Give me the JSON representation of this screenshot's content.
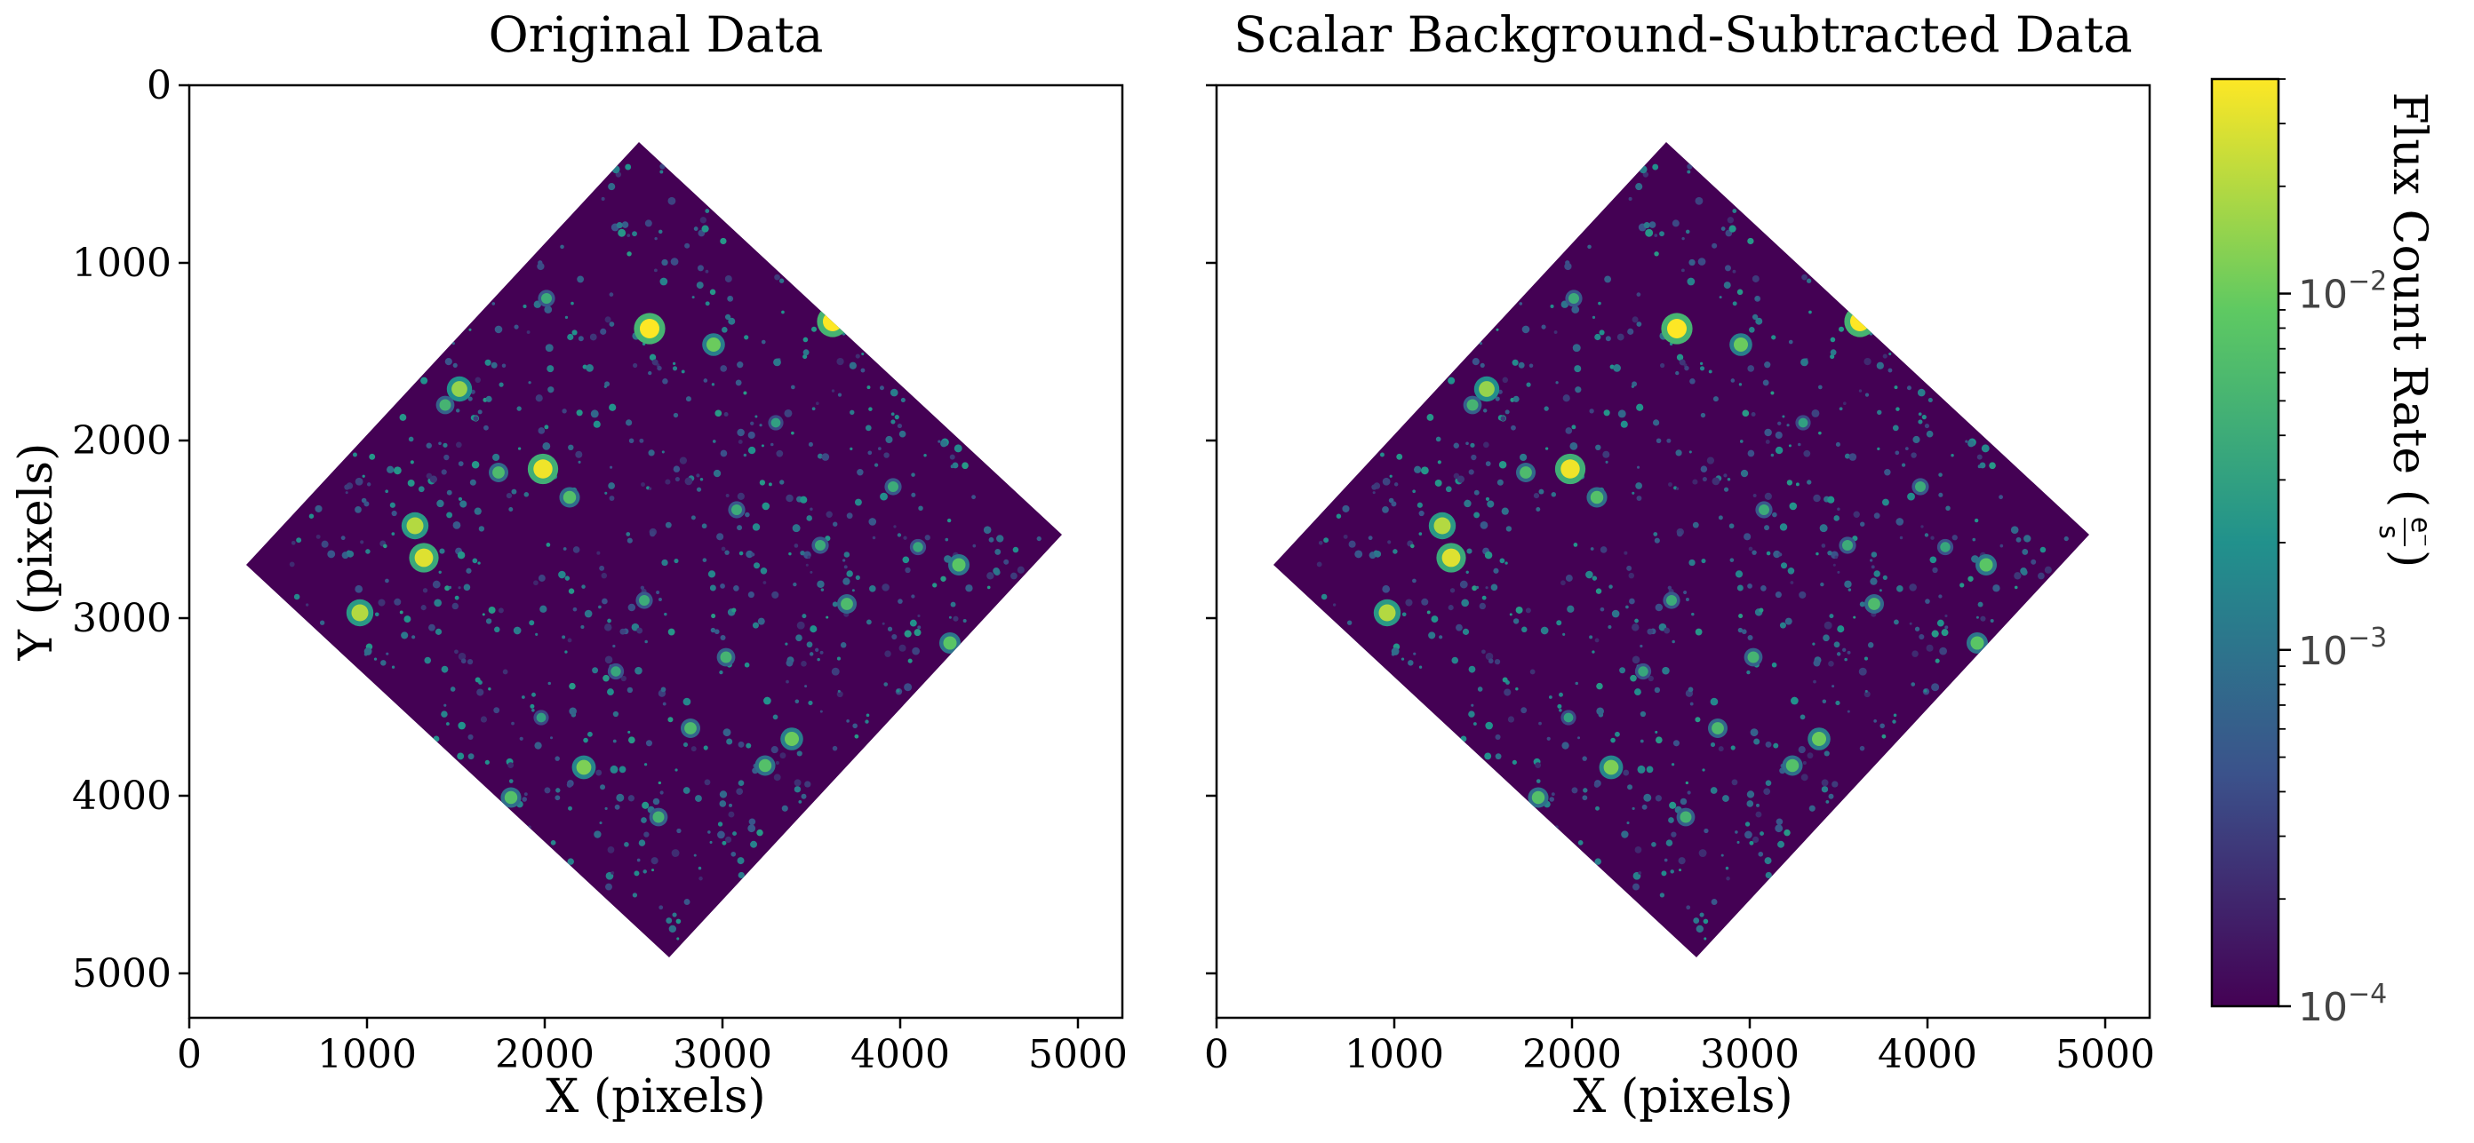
{
  "chart_data": {
    "type": "heatmap",
    "scale": "log",
    "colormap": "viridis",
    "colormap_stops": [
      "#440154",
      "#3b528b",
      "#21918c",
      "#5ec962",
      "#fde725"
    ],
    "panels": [
      {
        "title": "Original Data",
        "xlabel": "X (pixels)",
        "ylabel": "Y (pixels)",
        "xlim": [
          0,
          5250
        ],
        "ylim": [
          5250,
          0
        ],
        "xticks": [
          0,
          1000,
          2000,
          3000,
          4000,
          5000
        ],
        "yticks": [
          0,
          1000,
          2000,
          3000,
          4000,
          5000
        ],
        "x_tick_labels": [
          "0",
          "1000",
          "2000",
          "3000",
          "4000",
          "5000"
        ],
        "y_tick_labels": [
          "0",
          "1000",
          "2000",
          "3000",
          "4000",
          "5000"
        ],
        "footprint_corners": [
          [
            2530,
            320
          ],
          [
            4910,
            2530
          ],
          [
            2700,
            4910
          ],
          [
            320,
            2700
          ]
        ]
      },
      {
        "title": "Scalar Background-Subtracted Data",
        "xlabel": "X (pixels)",
        "ylabel": "",
        "xlim": [
          0,
          5250
        ],
        "ylim": [
          5250,
          0
        ],
        "xticks": [
          0,
          1000,
          2000,
          3000,
          4000,
          5000
        ],
        "yticks": [
          0,
          1000,
          2000,
          3000,
          4000,
          5000
        ],
        "x_tick_labels": [
          "0",
          "1000",
          "2000",
          "3000",
          "4000",
          "5000"
        ],
        "y_tick_labels": [],
        "footprint_corners": [
          [
            2530,
            320
          ],
          [
            4910,
            2530
          ],
          [
            2700,
            4910
          ],
          [
            320,
            2700
          ]
        ]
      }
    ],
    "colorbar": {
      "label": "Flux Count Rate",
      "unit_numerator": "e⁻",
      "unit_denominator": "s",
      "range": [
        0.0001,
        0.04
      ],
      "major_ticks": [
        0.0001,
        0.001,
        0.01
      ],
      "tick_label_mantissa": "10",
      "tick_label_exponents": [
        "−4",
        "−3",
        "−2"
      ]
    },
    "bright_sources": [
      {
        "x": 2590,
        "y": 1370,
        "flux": 0.04
      },
      {
        "x": 3620,
        "y": 1330,
        "flux": 0.04
      },
      {
        "x": 1990,
        "y": 2160,
        "flux": 0.035
      },
      {
        "x": 1320,
        "y": 2660,
        "flux": 0.03
      },
      {
        "x": 1270,
        "y": 2480,
        "flux": 0.02
      },
      {
        "x": 960,
        "y": 2970,
        "flux": 0.02
      },
      {
        "x": 1520,
        "y": 1710,
        "flux": 0.015
      },
      {
        "x": 2220,
        "y": 3840,
        "flux": 0.012
      },
      {
        "x": 2950,
        "y": 1460,
        "flux": 0.01
      },
      {
        "x": 3390,
        "y": 3680,
        "flux": 0.01
      },
      {
        "x": 4330,
        "y": 2700,
        "flux": 0.008
      },
      {
        "x": 4280,
        "y": 3140,
        "flux": 0.008
      },
      {
        "x": 1810,
        "y": 4010,
        "flux": 0.007
      },
      {
        "x": 3240,
        "y": 3830,
        "flux": 0.007
      },
      {
        "x": 2140,
        "y": 2320,
        "flux": 0.007
      },
      {
        "x": 1740,
        "y": 2180,
        "flux": 0.006
      },
      {
        "x": 3700,
        "y": 2920,
        "flux": 0.006
      },
      {
        "x": 2820,
        "y": 3620,
        "flux": 0.006
      },
      {
        "x": 2640,
        "y": 4120,
        "flux": 0.005
      },
      {
        "x": 3020,
        "y": 3220,
        "flux": 0.005
      },
      {
        "x": 1440,
        "y": 1800,
        "flux": 0.005
      },
      {
        "x": 2010,
        "y": 1200,
        "flux": 0.004
      },
      {
        "x": 3960,
        "y": 2260,
        "flux": 0.004
      },
      {
        "x": 3550,
        "y": 2590,
        "flux": 0.004
      },
      {
        "x": 2560,
        "y": 2900,
        "flux": 0.004
      },
      {
        "x": 3080,
        "y": 2390,
        "flux": 0.004
      },
      {
        "x": 2400,
        "y": 3300,
        "flux": 0.0035
      },
      {
        "x": 4100,
        "y": 2600,
        "flux": 0.0035
      },
      {
        "x": 1980,
        "y": 3560,
        "flux": 0.003
      },
      {
        "x": 3300,
        "y": 1900,
        "flux": 0.003
      }
    ]
  }
}
